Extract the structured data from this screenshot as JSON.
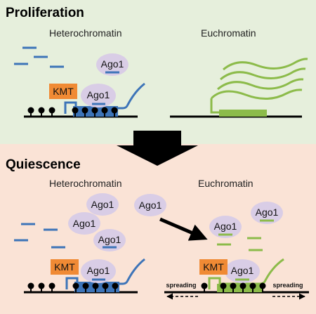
{
  "colors": {
    "proliferation_bg": "#e6efdc",
    "quiescence_bg": "#fae3d6",
    "ago_fill": "#d9cde6",
    "kmt_fill": "#f08a34",
    "hetero_blue": "#3d74b8",
    "eu_green": "#8cbb4a",
    "black": "#000000"
  },
  "proliferation": {
    "title": "Proliferation",
    "heterochromatin_label": "Heterochromatin",
    "euchromatin_label": "Euchromatin",
    "ago1_free": "Ago1",
    "kmt": "KMT",
    "ago1_bound": "Ago1"
  },
  "quiescence": {
    "title": "Quiescence",
    "heterochromatin_label": "Heterochromatin",
    "euchromatin_label": "Euchromatin",
    "ago1_free": [
      "Ago1",
      "Ago1",
      "Ago1",
      "Ago1",
      "Ago1",
      "Ago1"
    ],
    "kmt_hetero": "KMT",
    "ago1_hetero": "Ago1",
    "kmt_eu": "KMT",
    "ago1_eu": "Ago1",
    "spreading_left": "spreading",
    "spreading_right": "spreading"
  }
}
